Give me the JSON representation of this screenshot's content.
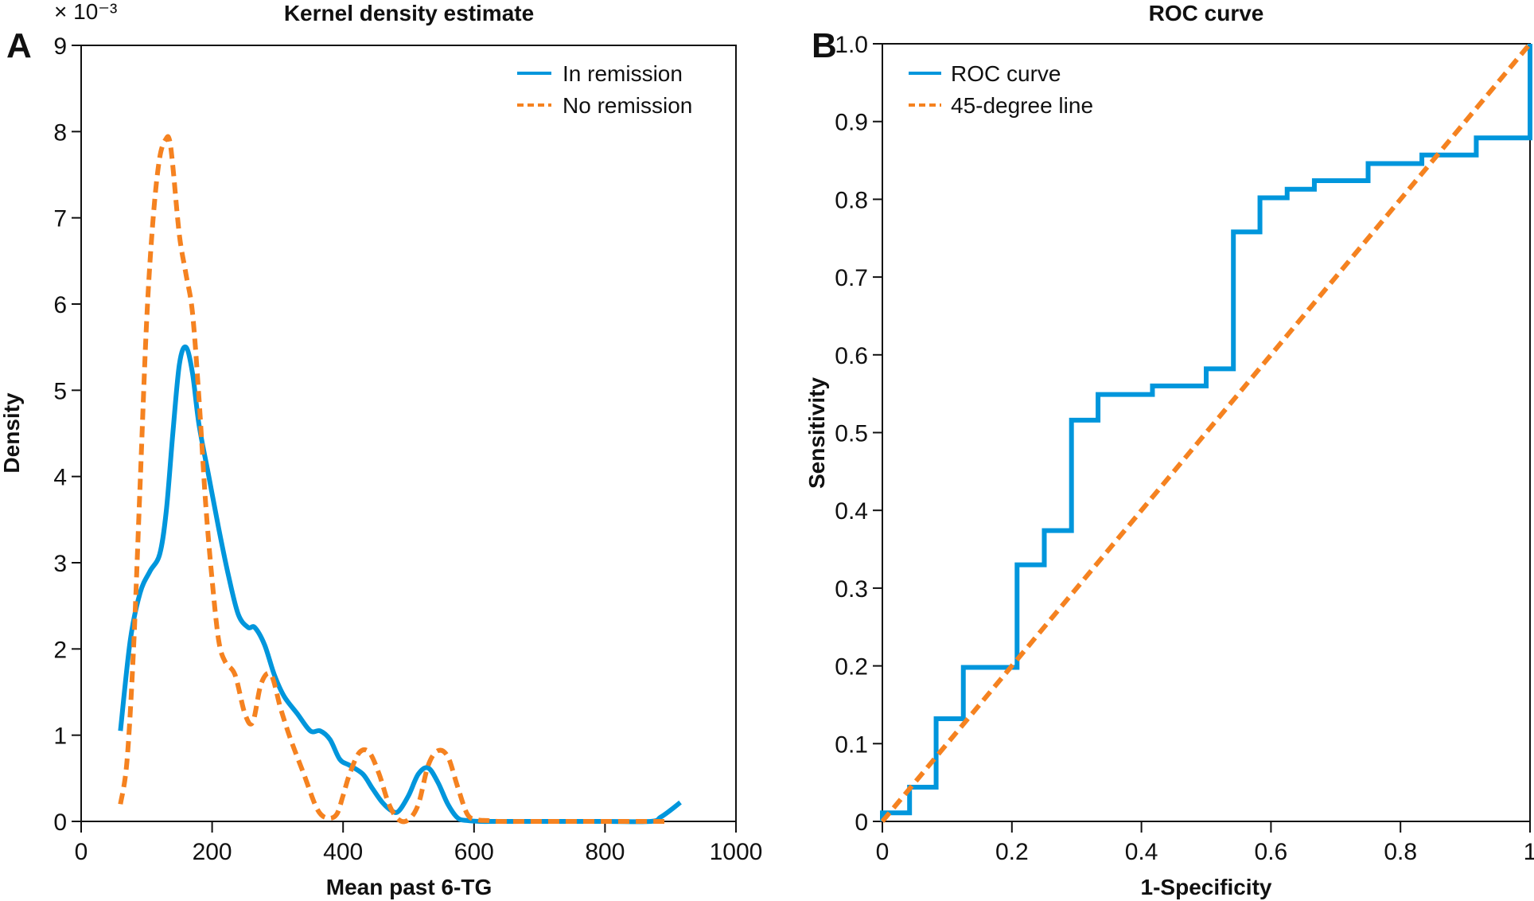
{
  "colors": {
    "blue": "#0096dc",
    "orange": "#f58220",
    "axis": "#111111"
  },
  "chart_data": [
    {
      "panel": "A",
      "type": "line",
      "title": "Kernel density estimate",
      "xlabel": "Mean past 6-TG",
      "ylabel": "Density",
      "y_multiplier_label": "× 10⁻³",
      "xlim": [
        0,
        1000
      ],
      "ylim": [
        0,
        9
      ],
      "xticks": [
        0,
        200,
        400,
        600,
        800,
        1000
      ],
      "xtick_labels": [
        "0",
        "200",
        "400",
        "600",
        "800",
        "1000"
      ],
      "yticks": [
        0,
        1,
        2,
        3,
        4,
        5,
        6,
        7,
        8,
        9
      ],
      "ytick_labels": [
        "0",
        "1",
        "2",
        "3",
        "4",
        "5",
        "6",
        "7",
        "8",
        "9"
      ],
      "grid": false,
      "legend_position": "top-right",
      "series": [
        {
          "name": "In remission",
          "style": "solid",
          "color": "#0096dc",
          "x": [
            60,
            75,
            90,
            105,
            120,
            130,
            140,
            150,
            160,
            170,
            180,
            195,
            210,
            225,
            240,
            255,
            265,
            280,
            295,
            310,
            330,
            350,
            365,
            380,
            395,
            410,
            430,
            445,
            460,
            475,
            485,
            500,
            515,
            530,
            545,
            560,
            575,
            590,
            610,
            640,
            700,
            800,
            870,
            885,
            900,
            915
          ],
          "y": [
            1.05,
            2.1,
            2.65,
            2.9,
            3.1,
            3.6,
            4.5,
            5.3,
            5.5,
            5.2,
            4.6,
            4.0,
            3.4,
            2.85,
            2.4,
            2.25,
            2.25,
            2.05,
            1.7,
            1.45,
            1.25,
            1.05,
            1.05,
            0.95,
            0.72,
            0.65,
            0.55,
            0.38,
            0.22,
            0.12,
            0.12,
            0.3,
            0.55,
            0.62,
            0.45,
            0.2,
            0.04,
            0.01,
            0.0,
            0.0,
            0.0,
            0.0,
            0.0,
            0.05,
            0.13,
            0.22
          ]
        },
        {
          "name": "No remission",
          "style": "dashed",
          "color": "#f58220",
          "x": [
            60,
            70,
            80,
            90,
            100,
            110,
            120,
            130,
            135,
            140,
            150,
            160,
            170,
            180,
            190,
            200,
            210,
            220,
            235,
            250,
            262,
            275,
            290,
            305,
            320,
            340,
            360,
            375,
            390,
            400,
            410,
            425,
            440,
            455,
            470,
            485,
            500,
            515,
            530,
            545,
            560,
            575,
            590,
            605,
            620,
            640,
            700,
            800,
            900
          ],
          "y": [
            0.2,
            0.7,
            2.0,
            3.9,
            5.8,
            7.0,
            7.7,
            7.92,
            7.9,
            7.6,
            6.8,
            6.35,
            5.9,
            4.9,
            3.7,
            2.8,
            2.1,
            1.85,
            1.7,
            1.25,
            1.15,
            1.6,
            1.7,
            1.3,
            0.95,
            0.55,
            0.15,
            0.04,
            0.08,
            0.3,
            0.55,
            0.8,
            0.8,
            0.55,
            0.2,
            0.02,
            0.02,
            0.2,
            0.65,
            0.82,
            0.75,
            0.4,
            0.08,
            0.02,
            0.01,
            0.0,
            0.0,
            0.0,
            0.0
          ]
        }
      ]
    },
    {
      "panel": "B",
      "type": "line",
      "title": "ROC curve",
      "xlabel": "1-Specificity",
      "ylabel": "Sensitivity",
      "xlim": [
        0,
        1
      ],
      "ylim": [
        0,
        1
      ],
      "xticks": [
        0,
        0.2,
        0.4,
        0.6,
        0.8,
        1
      ],
      "xtick_labels": [
        "0",
        "0.2",
        "0.4",
        "0.6",
        "0.8",
        "1"
      ],
      "yticks": [
        0,
        0.1,
        0.2,
        0.3,
        0.4,
        0.5,
        0.6,
        0.7,
        0.8,
        0.9,
        1.0
      ],
      "ytick_labels": [
        "0",
        "0.1",
        "0.2",
        "0.3",
        "0.4",
        "0.5",
        "0.6",
        "0.7",
        "0.8",
        "0.9",
        "1.0"
      ],
      "grid": false,
      "legend_position": "top-left",
      "series": [
        {
          "name": "ROC curve",
          "style": "solid-step",
          "color": "#0096dc",
          "x": [
            0,
            0,
            0.042,
            0.042,
            0.083,
            0.083,
            0.125,
            0.125,
            0.208,
            0.208,
            0.25,
            0.25,
            0.292,
            0.292,
            0.333,
            0.333,
            0.417,
            0.417,
            0.5,
            0.5,
            0.542,
            0.542,
            0.583,
            0.583,
            0.625,
            0.625,
            0.667,
            0.667,
            0.75,
            0.75,
            0.833,
            0.833,
            0.917,
            0.917,
            1.0,
            1.0
          ],
          "y": [
            0,
            0.011,
            0.011,
            0.044,
            0.044,
            0.132,
            0.132,
            0.198,
            0.198,
            0.33,
            0.33,
            0.374,
            0.374,
            0.516,
            0.516,
            0.549,
            0.549,
            0.56,
            0.56,
            0.582,
            0.582,
            0.758,
            0.758,
            0.802,
            0.802,
            0.813,
            0.813,
            0.824,
            0.824,
            0.846,
            0.846,
            0.857,
            0.857,
            0.879,
            0.879,
            1.0
          ]
        },
        {
          "name": "45-degree line",
          "style": "dashed",
          "color": "#f58220",
          "x": [
            0,
            1
          ],
          "y": [
            0,
            1
          ]
        }
      ]
    }
  ]
}
